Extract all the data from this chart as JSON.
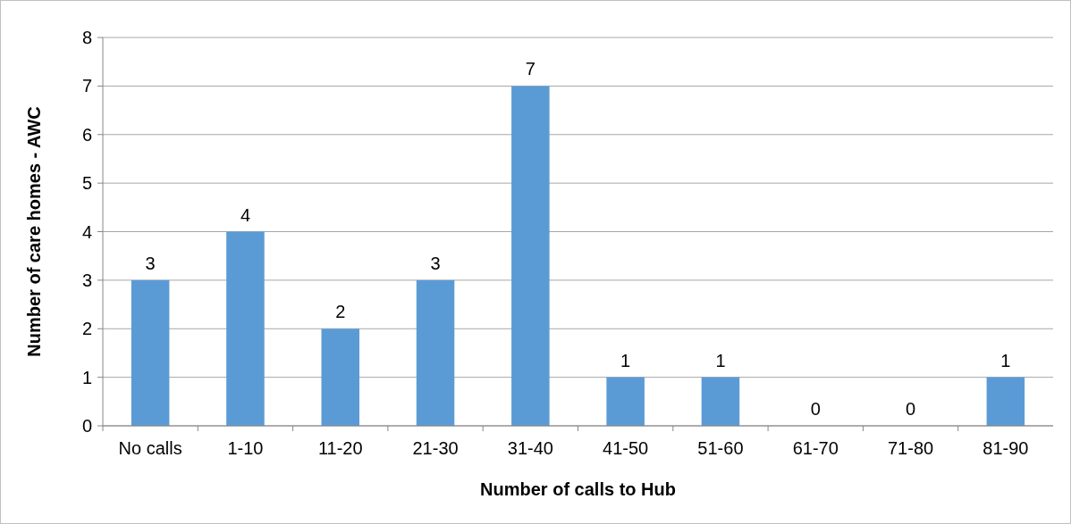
{
  "chart_data": {
    "type": "bar",
    "xlabel": "Number of calls to Hub",
    "ylabel": "Number of care homes - AWC",
    "categories": [
      "No calls",
      "1-10",
      "11-20",
      "21-30",
      "31-40",
      "41-50",
      "51-60",
      "61-70",
      "71-80",
      "81-90"
    ],
    "values": [
      3,
      4,
      2,
      3,
      7,
      1,
      1,
      0,
      0,
      1
    ],
    "color": "#5b9bd5",
    "ylim": [
      0,
      8
    ],
    "yticks": [
      0,
      1,
      2,
      3,
      4,
      5,
      6,
      7,
      8
    ],
    "grid": "y",
    "data_labels": true
  }
}
